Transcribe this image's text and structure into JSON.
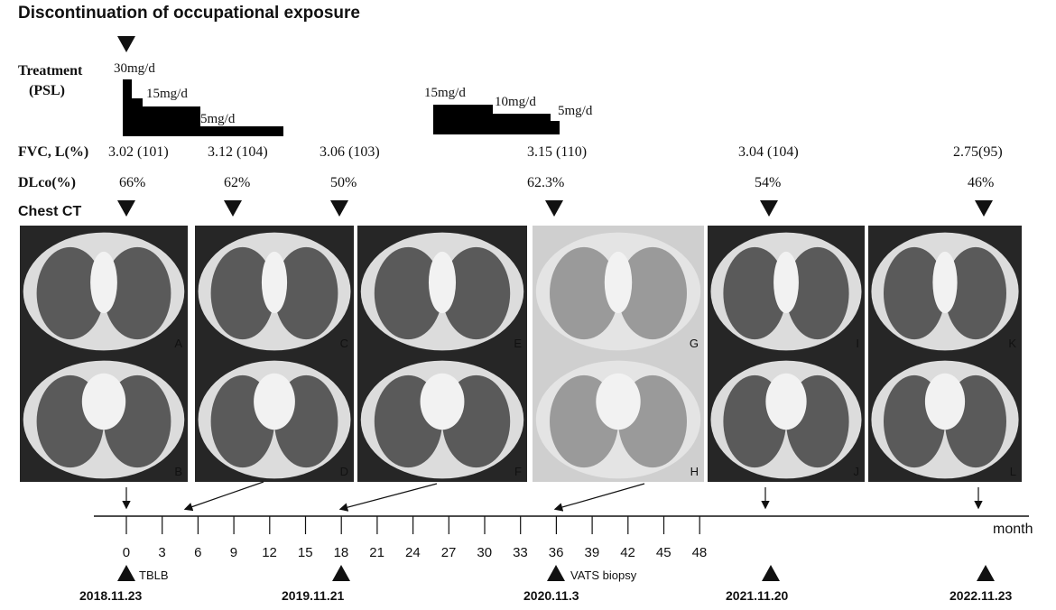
{
  "title": "Discontinuation of occupational exposure",
  "treatment": {
    "label_line1": "Treatment",
    "label_line2": "(PSL)",
    "course1": [
      "30mg/d",
      "15mg/d",
      "5mg/d"
    ],
    "course2": [
      "15mg/d",
      "10mg/d",
      "5mg/d"
    ]
  },
  "fvc": {
    "label": "FVC, L(%)",
    "values": [
      "3.02 (101)",
      "3.12 (104)",
      "3.06 (103)",
      "3.15 (110)",
      "3.04 (104)",
      "2.75(95)"
    ]
  },
  "dlco": {
    "label": "DLco(%)",
    "values": [
      "66%",
      "62%",
      "50%",
      "62.3%",
      "54%",
      "46%"
    ]
  },
  "chest_ct": {
    "label": "Chest CT",
    "panels_top": [
      "A",
      "C",
      "E",
      "G",
      "I",
      "K"
    ],
    "panels_bottom": [
      "B",
      "D",
      "F",
      "H",
      "J",
      "L"
    ]
  },
  "timeline": {
    "unit": "month",
    "ticks": [
      "0",
      "3",
      "6",
      "9",
      "12",
      "15",
      "18",
      "21",
      "24",
      "27",
      "30",
      "33",
      "36",
      "39",
      "42",
      "45",
      "48"
    ],
    "procedures": [
      "TBLB",
      "VATS biopsy"
    ],
    "dates": [
      "2018.11.23",
      "2019.11.21",
      "2020.11.3",
      "2021.11.20",
      "2022.11.23"
    ]
  }
}
